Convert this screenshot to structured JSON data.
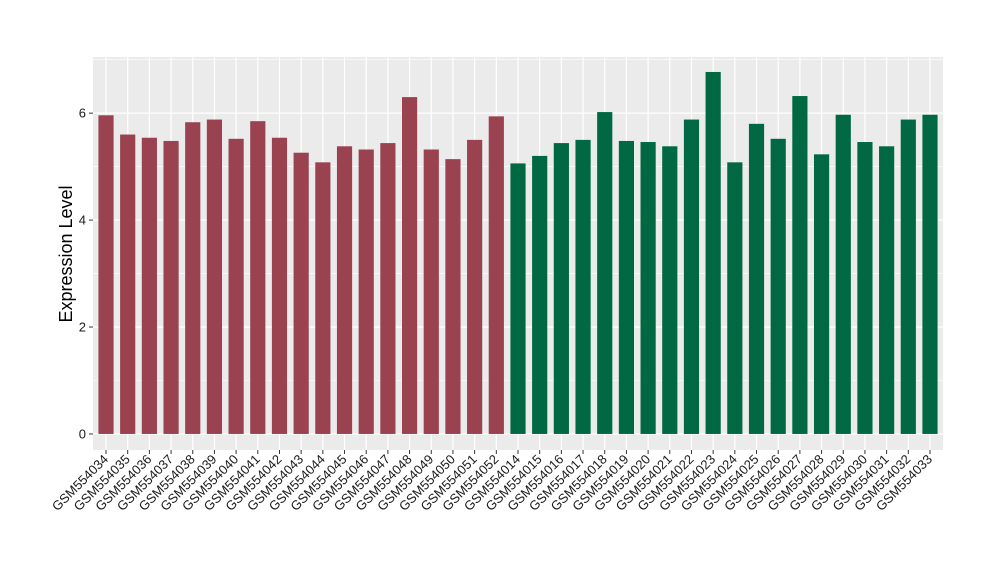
{
  "chart_data": {
    "type": "bar",
    "ylabel": "Expression Level",
    "xlabel": "",
    "title": "",
    "ylim": [
      -0.3,
      7.05
    ],
    "yticks": [
      0,
      2,
      4,
      6
    ],
    "grid": true,
    "categories": [
      "GSM554034",
      "GSM554035",
      "GSM554036",
      "GSM554037",
      "GSM554038",
      "GSM554039",
      "GSM554040",
      "GSM554041",
      "GSM554042",
      "GSM554043",
      "GSM554044",
      "GSM554045",
      "GSM554046",
      "GSM554047",
      "GSM554048",
      "GSM554049",
      "GSM554050",
      "GSM554051",
      "GSM554052",
      "GSM554014",
      "GSM554015",
      "GSM554016",
      "GSM554017",
      "GSM554018",
      "GSM554019",
      "GSM554020",
      "GSM554021",
      "GSM554022",
      "GSM554023",
      "GSM554024",
      "GSM554025",
      "GSM554026",
      "GSM554027",
      "GSM554028",
      "GSM554029",
      "GSM554030",
      "GSM554031",
      "GSM554032",
      "GSM554033"
    ],
    "values": [
      5.96,
      5.6,
      5.54,
      5.48,
      5.83,
      5.88,
      5.52,
      5.85,
      5.54,
      5.26,
      5.08,
      5.38,
      5.32,
      5.44,
      6.3,
      5.32,
      5.14,
      5.5,
      5.94,
      5.06,
      5.2,
      5.44,
      5.5,
      6.02,
      5.48,
      5.46,
      5.38,
      5.88,
      6.77,
      5.08,
      5.8,
      5.52,
      6.32,
      5.23,
      5.97,
      5.46,
      5.38,
      5.88,
      5.97
    ],
    "group_colors": [
      "#9a4250",
      "#006944"
    ],
    "group_sizes": [
      19,
      20
    ],
    "panel_background": "#ebebeb",
    "grid_color": "#ffffff"
  }
}
